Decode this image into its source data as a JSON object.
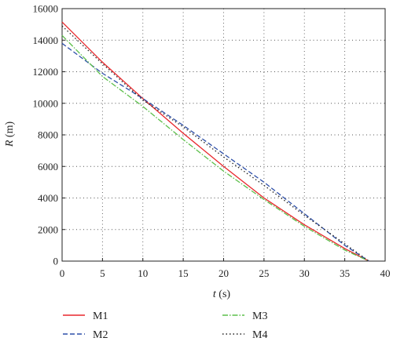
{
  "chart_data": {
    "type": "line",
    "xlabel_var": "t",
    "xlabel_unit": " (s)",
    "ylabel_var": "R",
    "ylabel_unit": " (m)",
    "xlim": [
      0,
      40
    ],
    "ylim": [
      0,
      16000
    ],
    "xticks": [
      0,
      5,
      10,
      15,
      20,
      25,
      30,
      35,
      40
    ],
    "yticks": [
      0,
      2000,
      4000,
      6000,
      8000,
      10000,
      12000,
      14000,
      16000
    ],
    "grid": true,
    "legend_position": "bottom",
    "series": [
      {
        "name": "M1",
        "color": "#e8262b",
        "dash": "solid",
        "x": [
          0,
          5,
          10,
          15,
          20,
          25,
          30,
          35,
          38
        ],
        "y": [
          15150,
          12600,
          10300,
          8100,
          6000,
          4000,
          2300,
          800,
          0
        ]
      },
      {
        "name": "M2",
        "color": "#2c4ea8",
        "dash": "dashed",
        "x": [
          0,
          5,
          10,
          15,
          20,
          25,
          30,
          35,
          38
        ],
        "y": [
          13800,
          11900,
          10300,
          8600,
          6800,
          5000,
          3000,
          1000,
          0
        ]
      },
      {
        "name": "M3",
        "color": "#5cbf4a",
        "dash": "dashdot",
        "x": [
          0,
          5,
          10,
          15,
          20,
          25,
          30,
          35,
          38
        ],
        "y": [
          14300,
          11700,
          9800,
          7700,
          5700,
          3900,
          2200,
          700,
          0
        ]
      },
      {
        "name": "M4",
        "color": "#222222",
        "dash": "dotted",
        "x": [
          0,
          5,
          10,
          15,
          20,
          25,
          30,
          35,
          38
        ],
        "y": [
          14900,
          12500,
          10200,
          8500,
          6600,
          4800,
          2900,
          1100,
          0
        ]
      }
    ]
  }
}
